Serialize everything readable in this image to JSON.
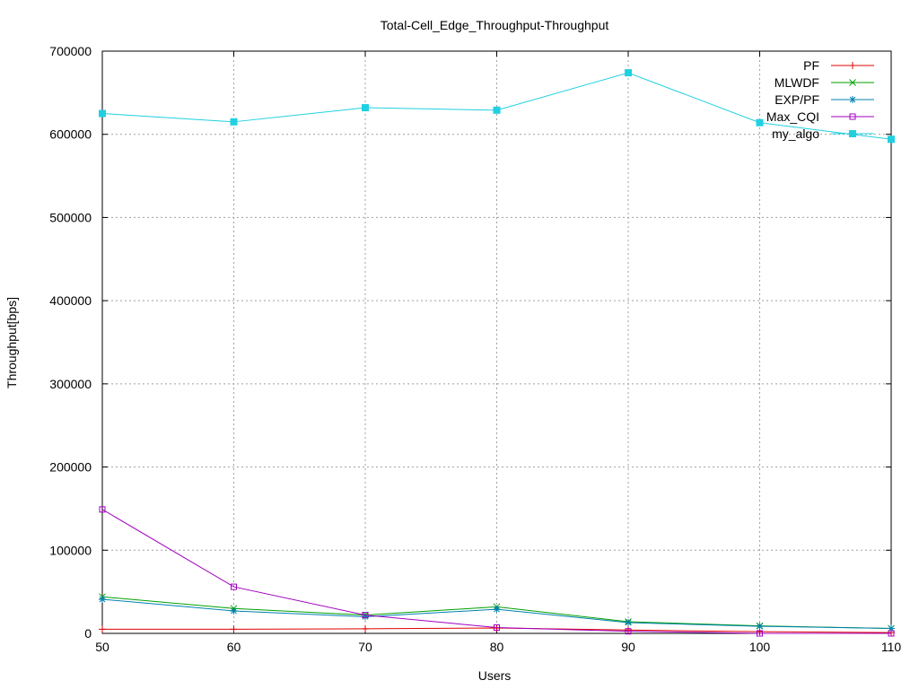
{
  "chart_data": {
    "type": "line",
    "title": "Total-Cell_Edge_Throughput-Throughput",
    "xlabel": "Users",
    "ylabel": "Throughput[bps]",
    "xlim": [
      50,
      110
    ],
    "ylim": [
      0,
      700000
    ],
    "xticks": [
      "50",
      "60",
      "70",
      "80",
      "90",
      "100",
      "110"
    ],
    "yticks": [
      "0",
      "100000",
      "200000",
      "300000",
      "400000",
      "500000",
      "600000",
      "700000"
    ],
    "grid": true,
    "legend_position": "top-right",
    "x": [
      50,
      60,
      70,
      80,
      90,
      100,
      110
    ],
    "series": [
      {
        "name": "PF",
        "color": "#e00000",
        "marker": "plus",
        "values": [
          5000,
          5000,
          5500,
          6500,
          4000,
          2000,
          1000
        ]
      },
      {
        "name": "MLWDF",
        "color": "#00a000",
        "marker": "cross",
        "values": [
          44000,
          30000,
          22000,
          32000,
          14000,
          9000,
          6000
        ]
      },
      {
        "name": "EXP/PF",
        "color": "#0080b0",
        "marker": "star",
        "values": [
          41000,
          27000,
          20000,
          29000,
          13000,
          8500,
          6000
        ]
      },
      {
        "name": "Max_CQI",
        "color": "#a000c0",
        "marker": "open-square",
        "values": [
          149000,
          56000,
          22000,
          7000,
          2500,
          0,
          0
        ]
      },
      {
        "name": "my_algo",
        "color": "#20d0e0",
        "marker": "filled-square",
        "values": [
          625000,
          615000,
          632000,
          629000,
          674000,
          614000,
          594000
        ]
      }
    ]
  }
}
